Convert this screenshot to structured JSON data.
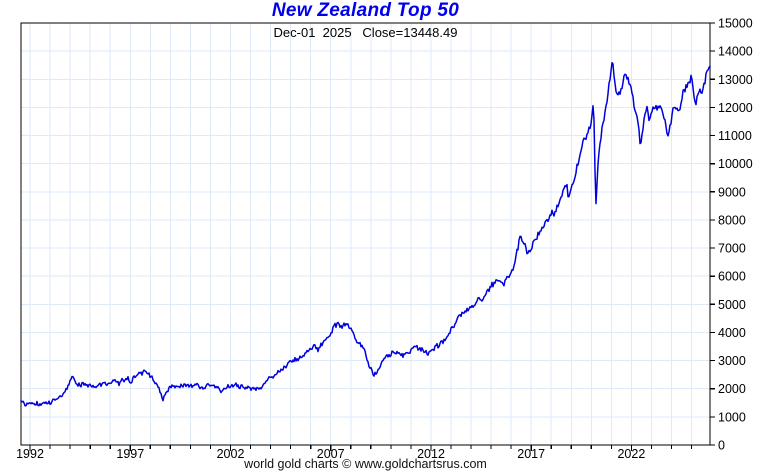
{
  "header": {
    "title": "New Zealand Top 50",
    "subtitle": "Dec-01  2025   Close=13448.49"
  },
  "footer": {
    "credit": "world gold charts © www.goldchartsrus.com"
  },
  "chart_data": {
    "type": "line",
    "title": "New Zealand Top 50",
    "last_point_date": "Dec-01 2025",
    "last_close": 13448.49,
    "legend_position": "none",
    "grid": "on",
    "colors": {
      "line": "#0000dd",
      "grid": "#deeaf8",
      "axis": "#000000",
      "title": "#0000ee",
      "background": "#ffffff"
    },
    "x_axis": {
      "range": [
        1991.55,
        2025.92
      ],
      "major_ticks": [
        1992,
        1997,
        2002,
        2007,
        2012,
        2017,
        2022
      ],
      "major_tick_labels": [
        "1992",
        "1997",
        "2002",
        "2007",
        "2012",
        "2017",
        "2022"
      ],
      "minor_tick_step_years": 1,
      "label_side": "bottom"
    },
    "y_axis": {
      "range": [
        0,
        15000
      ],
      "tick_step": 1000,
      "ticks": [
        0,
        1000,
        2000,
        3000,
        4000,
        5000,
        6000,
        7000,
        8000,
        9000,
        10000,
        11000,
        12000,
        13000,
        14000,
        15000
      ],
      "tick_labels": [
        "0",
        "1000",
        "2000",
        "3000",
        "4000",
        "5000",
        "6000",
        "7000",
        "8000",
        "9000",
        "10000",
        "11000",
        "12000",
        "13000",
        "14000",
        "15000"
      ],
      "label_side": "right"
    },
    "series": [
      {
        "name": "New Zealand Top 50 index",
        "points": [
          [
            1991.6,
            1500
          ],
          [
            1991.8,
            1470
          ],
          [
            1992.0,
            1520
          ],
          [
            1992.15,
            1450
          ],
          [
            1992.3,
            1510
          ],
          [
            1992.45,
            1440
          ],
          [
            1992.6,
            1430
          ],
          [
            1992.75,
            1500
          ],
          [
            1992.9,
            1470
          ],
          [
            1993.1,
            1540
          ],
          [
            1993.3,
            1630
          ],
          [
            1993.5,
            1730
          ],
          [
            1993.7,
            1870
          ],
          [
            1993.9,
            2100
          ],
          [
            1994.08,
            2440
          ],
          [
            1994.2,
            2250
          ],
          [
            1994.35,
            2140
          ],
          [
            1994.5,
            2070
          ],
          [
            1994.65,
            2170
          ],
          [
            1994.8,
            2120
          ],
          [
            1995.0,
            2150
          ],
          [
            1995.2,
            2100
          ],
          [
            1995.4,
            2180
          ],
          [
            1995.6,
            2230
          ],
          [
            1995.8,
            2170
          ],
          [
            1996.0,
            2230
          ],
          [
            1996.2,
            2280
          ],
          [
            1996.4,
            2220
          ],
          [
            1996.6,
            2280
          ],
          [
            1996.8,
            2330
          ],
          [
            1997.0,
            2300
          ],
          [
            1997.2,
            2410
          ],
          [
            1997.45,
            2560
          ],
          [
            1997.6,
            2470
          ],
          [
            1997.8,
            2590
          ],
          [
            1998.0,
            2440
          ],
          [
            1998.2,
            2290
          ],
          [
            1998.4,
            2040
          ],
          [
            1998.65,
            1620
          ],
          [
            1998.8,
            1900
          ],
          [
            1999.0,
            2050
          ],
          [
            1999.2,
            2130
          ],
          [
            1999.4,
            2080
          ],
          [
            1999.6,
            2160
          ],
          [
            1999.8,
            2110
          ],
          [
            2000.0,
            2180
          ],
          [
            2000.2,
            2130
          ],
          [
            2000.4,
            2060
          ],
          [
            2000.6,
            2000
          ],
          [
            2000.8,
            2090
          ],
          [
            2001.0,
            2110
          ],
          [
            2001.2,
            2140
          ],
          [
            2001.4,
            2050
          ],
          [
            2001.6,
            1930
          ],
          [
            2001.8,
            2040
          ],
          [
            2002.0,
            2080
          ],
          [
            2002.2,
            2110
          ],
          [
            2002.4,
            2060
          ],
          [
            2002.6,
            2090
          ],
          [
            2002.8,
            2040
          ],
          [
            2003.0,
            1990
          ],
          [
            2003.2,
            1950
          ],
          [
            2003.4,
            2030
          ],
          [
            2003.6,
            2130
          ],
          [
            2003.8,
            2250
          ],
          [
            2004.0,
            2400
          ],
          [
            2004.2,
            2480
          ],
          [
            2004.4,
            2580
          ],
          [
            2004.6,
            2700
          ],
          [
            2004.8,
            2820
          ],
          [
            2005.0,
            2920
          ],
          [
            2005.2,
            3020
          ],
          [
            2005.4,
            3120
          ],
          [
            2005.6,
            3280
          ],
          [
            2005.8,
            3320
          ],
          [
            2006.0,
            3380
          ],
          [
            2006.2,
            3520
          ],
          [
            2006.4,
            3420
          ],
          [
            2006.6,
            3620
          ],
          [
            2006.8,
            3780
          ],
          [
            2007.0,
            3980
          ],
          [
            2007.2,
            4180
          ],
          [
            2007.4,
            4330
          ],
          [
            2007.55,
            4180
          ],
          [
            2007.7,
            4270
          ],
          [
            2007.85,
            4300
          ],
          [
            2008.0,
            4050
          ],
          [
            2008.2,
            3750
          ],
          [
            2008.4,
            3620
          ],
          [
            2008.6,
            3460
          ],
          [
            2008.8,
            3050
          ],
          [
            2009.0,
            2700
          ],
          [
            2009.15,
            2400
          ],
          [
            2009.3,
            2620
          ],
          [
            2009.5,
            2860
          ],
          [
            2009.7,
            3060
          ],
          [
            2009.9,
            3200
          ],
          [
            2010.1,
            3280
          ],
          [
            2010.3,
            3330
          ],
          [
            2010.5,
            3130
          ],
          [
            2010.7,
            3230
          ],
          [
            2010.9,
            3320
          ],
          [
            2011.1,
            3420
          ],
          [
            2011.3,
            3480
          ],
          [
            2011.5,
            3390
          ],
          [
            2011.7,
            3280
          ],
          [
            2011.9,
            3300
          ],
          [
            2012.1,
            3380
          ],
          [
            2012.3,
            3480
          ],
          [
            2012.5,
            3580
          ],
          [
            2012.7,
            3720
          ],
          [
            2012.9,
            3960
          ],
          [
            2013.1,
            4250
          ],
          [
            2013.3,
            4480
          ],
          [
            2013.5,
            4580
          ],
          [
            2013.7,
            4700
          ],
          [
            2013.9,
            4850
          ],
          [
            2014.1,
            4960
          ],
          [
            2014.3,
            5120
          ],
          [
            2014.5,
            5180
          ],
          [
            2014.7,
            5280
          ],
          [
            2014.9,
            5520
          ],
          [
            2015.1,
            5720
          ],
          [
            2015.3,
            5850
          ],
          [
            2015.5,
            5750
          ],
          [
            2015.65,
            5620
          ],
          [
            2015.8,
            5950
          ],
          [
            2016.0,
            6160
          ],
          [
            2016.2,
            6500
          ],
          [
            2016.45,
            7480
          ],
          [
            2016.65,
            7200
          ],
          [
            2016.8,
            6850
          ],
          [
            2017.0,
            7060
          ],
          [
            2017.2,
            7300
          ],
          [
            2017.4,
            7480
          ],
          [
            2017.6,
            7750
          ],
          [
            2017.8,
            8050
          ],
          [
            2018.0,
            8300
          ],
          [
            2018.15,
            8180
          ],
          [
            2018.3,
            8500
          ],
          [
            2018.5,
            8750
          ],
          [
            2018.75,
            9250
          ],
          [
            2018.85,
            8800
          ],
          [
            2019.0,
            9000
          ],
          [
            2019.2,
            9600
          ],
          [
            2019.4,
            10100
          ],
          [
            2019.6,
            10800
          ],
          [
            2019.8,
            11150
          ],
          [
            2019.95,
            11300
          ],
          [
            2020.12,
            12050
          ],
          [
            2020.22,
            8400
          ],
          [
            2020.35,
            10200
          ],
          [
            2020.5,
            11150
          ],
          [
            2020.65,
            11700
          ],
          [
            2020.8,
            12300
          ],
          [
            2020.95,
            13100
          ],
          [
            2021.05,
            13640
          ],
          [
            2021.15,
            13050
          ],
          [
            2021.25,
            12450
          ],
          [
            2021.4,
            12600
          ],
          [
            2021.55,
            12850
          ],
          [
            2021.7,
            13300
          ],
          [
            2021.85,
            12950
          ],
          [
            2022.0,
            12800
          ],
          [
            2022.15,
            12050
          ],
          [
            2022.3,
            11650
          ],
          [
            2022.45,
            10750
          ],
          [
            2022.6,
            11350
          ],
          [
            2022.75,
            11900
          ],
          [
            2022.9,
            11500
          ],
          [
            2023.05,
            11950
          ],
          [
            2023.2,
            12100
          ],
          [
            2023.35,
            11800
          ],
          [
            2023.5,
            11950
          ],
          [
            2023.65,
            11500
          ],
          [
            2023.8,
            11100
          ],
          [
            2023.95,
            11450
          ],
          [
            2024.1,
            11900
          ],
          [
            2024.25,
            12050
          ],
          [
            2024.4,
            11800
          ],
          [
            2024.55,
            12400
          ],
          [
            2024.7,
            12700
          ],
          [
            2024.85,
            12950
          ],
          [
            2025.0,
            13050
          ],
          [
            2025.1,
            12500
          ],
          [
            2025.2,
            12150
          ],
          [
            2025.3,
            12500
          ],
          [
            2025.4,
            12700
          ],
          [
            2025.5,
            12450
          ],
          [
            2025.6,
            12800
          ],
          [
            2025.7,
            13100
          ],
          [
            2025.8,
            13300
          ],
          [
            2025.92,
            13448.49
          ]
        ]
      }
    ]
  }
}
